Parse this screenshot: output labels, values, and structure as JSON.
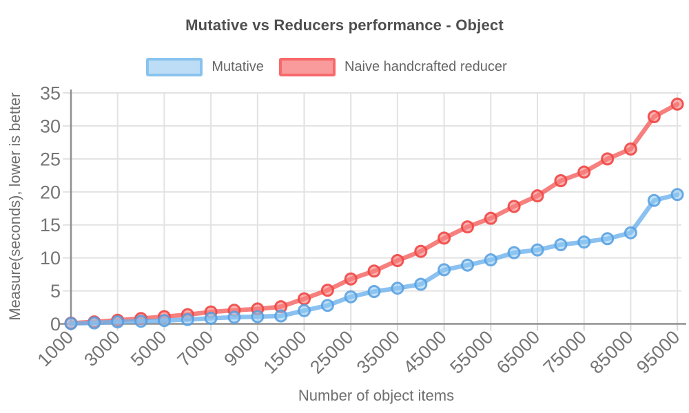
{
  "title": "Mutative vs Reducers performance - Object",
  "legend": {
    "items": [
      {
        "label": "Mutative",
        "swatch_fill": "#BDDDF6",
        "swatch_border": "#89C3EE"
      },
      {
        "label": "Naive handcrafted reducer",
        "swatch_fill": "#F99B9C",
        "swatch_border": "#F8696B"
      }
    ]
  },
  "chart_data": {
    "type": "line",
    "title": "Mutative vs Reducers performance - Object",
    "xlabel": "Number of object items",
    "ylabel": "Measure(seconds), lower is better",
    "x": [
      1000,
      2000,
      3000,
      4000,
      5000,
      6000,
      7000,
      8000,
      9000,
      10000,
      15000,
      20000,
      25000,
      30000,
      35000,
      40000,
      45000,
      50000,
      55000,
      60000,
      65000,
      70000,
      75000,
      80000,
      85000,
      90000,
      95000
    ],
    "labeled_tick_indices": [
      0,
      2,
      4,
      6,
      8,
      10,
      12,
      14,
      16,
      18,
      20,
      22,
      24,
      26
    ],
    "series": [
      {
        "name": "Mutative",
        "line_color": "rgba(110,178,236,0.8)",
        "marker_fill": "rgba(144,200,243,0.55)",
        "marker_stroke": "rgba(84,158,224,0.85)",
        "values": [
          0.05,
          0.15,
          0.3,
          0.4,
          0.5,
          0.65,
          0.85,
          1.0,
          1.1,
          1.2,
          2.0,
          2.8,
          4.1,
          4.9,
          5.4,
          6.0,
          8.2,
          8.9,
          9.7,
          10.8,
          11.2,
          12.0,
          12.4,
          12.9,
          13.8,
          18.7,
          19.6
        ]
      },
      {
        "name": "Naive handcrafted reducer",
        "line_color": "rgba(244,96,94,0.8)",
        "marker_fill": "rgba(247,128,126,0.6)",
        "marker_stroke": "rgba(240,70,68,0.9)",
        "values": [
          0.1,
          0.3,
          0.55,
          0.8,
          1.1,
          1.4,
          1.8,
          2.05,
          2.25,
          2.6,
          3.8,
          5.1,
          6.8,
          8.0,
          9.6,
          11.0,
          13.0,
          14.7,
          16.0,
          17.8,
          19.4,
          21.7,
          23.0,
          25.0,
          26.5,
          31.4,
          33.3
        ]
      }
    ],
    "ylim": [
      0,
      35
    ],
    "y_ticks": [
      0,
      5,
      10,
      15,
      20,
      25,
      30,
      35
    ],
    "grid": true,
    "legend_position": "top",
    "tick_label_color": "#757575"
  }
}
